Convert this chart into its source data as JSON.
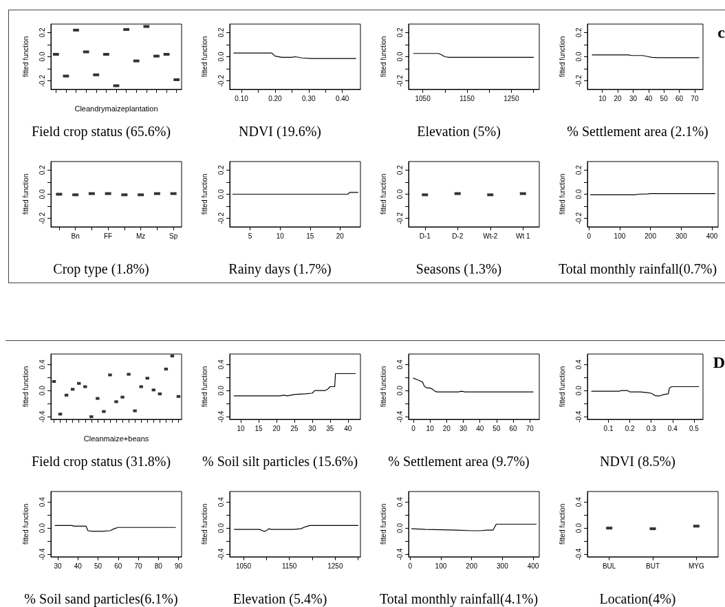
{
  "chart_data": [
    {
      "type": "scatter",
      "title": "Field crop status (65.6%)",
      "xlabel": "Cleandrymaizeplantation",
      "ylabel": "fitted function",
      "categories": [
        null,
        null,
        null,
        null,
        null,
        null,
        null,
        null,
        null,
        null,
        null,
        null,
        null
      ],
      "values": [
        0.02,
        -0.16,
        0.22,
        0.04,
        -0.15,
        0.02,
        -0.24,
        0.225,
        -0.035,
        0.25,
        0.005,
        0.02,
        -0.19
      ],
      "color": "#000000",
      "ylim": [
        -0.27,
        0.27
      ],
      "yticks": [
        -0.2,
        {
          "value": -0.1,
          "label": null
        },
        {
          "value": 0,
          "label": "0.0"
        },
        {
          "value": 0.1,
          "label": null
        },
        0.2
      ]
    },
    {
      "type": "line",
      "title": "NDVI (19.6%)",
      "ylabel": "fitted function",
      "x": [
        0.077,
        0.19,
        0.2,
        0.22,
        0.25,
        0.26,
        0.28,
        0.31,
        0.44
      ],
      "values": [
        0.03,
        0.03,
        0.005,
        -0.005,
        -0.005,
        0.0,
        -0.01,
        -0.015,
        -0.015
      ],
      "color": "#000000",
      "xlim": [
        0.065,
        0.454
      ],
      "xticks": [
        {
          "value": 0.1,
          "label": "0.10"
        },
        {
          "value": 0.15,
          "label": null
        },
        {
          "value": 0.2,
          "label": "0.20"
        },
        {
          "value": 0.25,
          "label": null
        },
        {
          "value": 0.3,
          "label": "0.30"
        },
        {
          "value": 0.35,
          "label": null
        },
        {
          "value": 0.4,
          "label": "0.40"
        }
      ],
      "ylim": [
        -0.27,
        0.27
      ],
      "yticks": [
        -0.2,
        {
          "value": -0.1,
          "label": null
        },
        {
          "value": 0,
          "label": "0.0"
        },
        {
          "value": 0.1,
          "label": null
        },
        0.2
      ]
    },
    {
      "type": "line",
      "title": "Elevation (5%)",
      "ylabel": "fitted function",
      "x": [
        1029,
        1085,
        1090,
        1100,
        1110,
        1300
      ],
      "values": [
        0.027,
        0.027,
        0.02,
        0.0,
        -0.005,
        -0.005
      ],
      "color": "#000000",
      "xlim": [
        1018,
        1313
      ],
      "xticks": [
        1050,
        {
          "value": 1100,
          "label": null
        },
        1150,
        {
          "value": 1200,
          "label": null
        },
        1250,
        {
          "value": 1300,
          "label": null
        }
      ],
      "ylim": [
        -0.27,
        0.27
      ],
      "yticks": [
        -0.2,
        {
          "value": -0.1,
          "label": null
        },
        {
          "value": 0,
          "label": "0.0"
        },
        {
          "value": 0.1,
          "label": null
        },
        0.2
      ]
    },
    {
      "type": "line",
      "title": "% Settlement area (2.1%)",
      "ylabel": "fitted function",
      "annotations": [
        "c"
      ],
      "x": [
        3.4,
        27,
        29,
        36,
        40,
        42,
        46,
        72.8
      ],
      "values": [
        0.015,
        0.015,
        0.01,
        0.01,
        0.0,
        -0.005,
        -0.008,
        -0.008
      ],
      "color": "#000000",
      "xlim": [
        0.3,
        75.4
      ],
      "xticks": [
        10,
        20,
        30,
        40,
        50,
        60,
        70
      ],
      "ylim": [
        -0.27,
        0.27
      ],
      "yticks": [
        -0.2,
        {
          "value": -0.1,
          "label": null
        },
        {
          "value": 0,
          "label": "0.0"
        },
        {
          "value": 0.1,
          "label": null
        },
        0.2
      ]
    },
    {
      "type": "scatter",
      "title": "Crop type (1.8%)",
      "ylabel": "fitted function",
      "categories": [
        null,
        "Bn",
        null,
        "FF",
        null,
        "Mz",
        null,
        "Sp"
      ],
      "values": [
        0.0,
        -0.005,
        0.005,
        0.005,
        -0.005,
        -0.005,
        0.005,
        0.005
      ],
      "color": "#000000",
      "ylim": [
        -0.27,
        0.27
      ],
      "yticks": [
        -0.2,
        {
          "value": -0.1,
          "label": null
        },
        {
          "value": 0,
          "label": "0.0"
        },
        {
          "value": 0.1,
          "label": null
        },
        0.2
      ]
    },
    {
      "type": "line",
      "title": "Rainy days (1.7%)",
      "ylabel": "fitted function",
      "x": [
        2.1,
        21.3,
        21.6,
        23
      ],
      "values": [
        0.0,
        0.0,
        0.015,
        0.015
      ],
      "color": "#000000",
      "xlim": [
        1.6,
        23.4
      ],
      "xticks": [
        5,
        10,
        15,
        20
      ],
      "ylim": [
        -0.27,
        0.27
      ],
      "yticks": [
        -0.2,
        {
          "value": -0.1,
          "label": null
        },
        {
          "value": 0,
          "label": "0.0"
        },
        {
          "value": 0.1,
          "label": null
        },
        0.2
      ]
    },
    {
      "type": "scatter",
      "title": "Seasons (1.3%)",
      "ylabel": "fitted function",
      "categories": [
        "D-1",
        "D-2",
        "Wt-2",
        "Wt 1"
      ],
      "values": [
        -0.005,
        0.005,
        -0.005,
        0.005
      ],
      "color": "#000000",
      "ylim": [
        -0.27,
        0.27
      ],
      "yticks": [
        -0.2,
        {
          "value": -0.1,
          "label": null
        },
        {
          "value": 0,
          "label": "0.0"
        },
        {
          "value": 0.1,
          "label": null
        },
        0.2
      ]
    },
    {
      "type": "line",
      "title": "Total monthly rainfall(0.7%)",
      "ylabel": "fitted function",
      "x": [
        5,
        150,
        160,
        190,
        200,
        410
      ],
      "values": [
        -0.005,
        -0.005,
        0.0,
        0.002,
        0.005,
        0.005
      ],
      "color": "#000000",
      "xlim": [
        -5,
        420
      ],
      "xticks": [
        0,
        100,
        200,
        300,
        400
      ],
      "ylim": [
        -0.27,
        0.27
      ],
      "yticks": [
        -0.2,
        {
          "value": -0.1,
          "label": null
        },
        {
          "value": 0,
          "label": "0.0"
        },
        {
          "value": 0.1,
          "label": null
        },
        0.2
      ]
    },
    {
      "type": "scatter",
      "title": "Field crop status (31.8%)",
      "xlabel": "Cleanmaize+beans",
      "ylabel": "fitted function",
      "categories": [
        null,
        null,
        null,
        null,
        null,
        null,
        null,
        null,
        null,
        null,
        null,
        null,
        null,
        null,
        null,
        null,
        null,
        null,
        null,
        null,
        null
      ],
      "values": [
        0.14,
        -0.36,
        -0.07,
        0.02,
        0.11,
        0.06,
        -0.4,
        -0.12,
        -0.32,
        0.24,
        -0.17,
        -0.1,
        0.25,
        -0.31,
        0.06,
        0.19,
        0.01,
        -0.05,
        0.33,
        0.53,
        -0.09
      ],
      "color": "#000000",
      "ylim": [
        -0.44,
        0.56
      ],
      "yticks": [
        -0.4,
        {
          "value": -0.2,
          "label": null
        },
        {
          "value": 0,
          "label": "0.0"
        },
        {
          "value": 0.2,
          "label": null
        },
        0.4
      ]
    },
    {
      "type": "line",
      "title": "% Soil silt particles (15.6%)",
      "ylabel": "fitted function",
      "x": [
        8.1,
        21,
        22,
        23,
        24,
        25,
        28,
        30,
        30.7,
        33.5,
        34.3,
        35,
        36.3,
        36.5,
        42.1
      ],
      "values": [
        -0.08,
        -0.08,
        -0.07,
        -0.08,
        -0.07,
        -0.06,
        -0.05,
        -0.04,
        0.0,
        0.0,
        0.02,
        0.06,
        0.06,
        0.26,
        0.26
      ],
      "color": "#000000",
      "xlim": [
        6.9,
        43.5
      ],
      "xticks": [
        10,
        15,
        20,
        25,
        30,
        35,
        40
      ],
      "ylim": [
        -0.44,
        0.56
      ],
      "yticks": [
        -0.4,
        {
          "value": -0.2,
          "label": null
        },
        {
          "value": 0,
          "label": "0.0"
        },
        {
          "value": 0.2,
          "label": null
        },
        0.4
      ]
    },
    {
      "type": "line",
      "title": "% Settlement area (9.7%)",
      "ylabel": "fitted function",
      "x": [
        0,
        2,
        4,
        5.5,
        6.5,
        8,
        10,
        11.5,
        13,
        14,
        27,
        29,
        31,
        72
      ],
      "values": [
        0.19,
        0.17,
        0.15,
        0.13,
        0.07,
        0.04,
        0.04,
        0.02,
        -0.01,
        -0.02,
        -0.02,
        -0.01,
        -0.02,
        -0.02
      ],
      "color": "#000000",
      "xlim": [
        -2.9,
        75.7
      ],
      "xticks": [
        0,
        10,
        20,
        30,
        40,
        50,
        60,
        70
      ],
      "ylim": [
        -0.44,
        0.56
      ],
      "yticks": [
        -0.4,
        {
          "value": -0.2,
          "label": null
        },
        {
          "value": 0,
          "label": "0.0"
        },
        {
          "value": 0.2,
          "label": null
        },
        0.4
      ]
    },
    {
      "type": "line",
      "title": "NDVI (8.5%)",
      "ylabel": "fitted function",
      "annotations": [
        "D"
      ],
      "x": [
        0.022,
        0.15,
        0.16,
        0.19,
        0.2,
        0.23,
        0.24,
        0.25,
        0.28,
        0.3,
        0.32,
        0.34,
        0.36,
        0.38,
        0.385,
        0.395,
        0.522
      ],
      "values": [
        -0.01,
        -0.01,
        0.0,
        0.0,
        -0.02,
        -0.02,
        -0.02,
        -0.02,
        -0.03,
        -0.04,
        -0.08,
        -0.08,
        -0.06,
        -0.05,
        0.04,
        0.06,
        0.06
      ],
      "color": "#000000",
      "xlim": [
        0.002,
        0.542
      ],
      "xticks": [
        0.1,
        0.2,
        0.3,
        0.4,
        0.5
      ],
      "ylim": [
        -0.44,
        0.56
      ],
      "yticks": [
        -0.4,
        {
          "value": -0.2,
          "label": null
        },
        {
          "value": 0,
          "label": "0.0"
        },
        {
          "value": 0.2,
          "label": null
        },
        0.4
      ]
    },
    {
      "type": "line",
      "title": "% Soil sand particles(6.1%)",
      "ylabel": "fitted function",
      "x": [
        28.7,
        37,
        38,
        44,
        45,
        47,
        52,
        56,
        58,
        60,
        88.5
      ],
      "values": [
        0.04,
        0.04,
        0.03,
        0.03,
        -0.04,
        -0.05,
        -0.05,
        -0.04,
        -0.01,
        0.01,
        0.01
      ],
      "color": "#000000",
      "xlim": [
        26.6,
        91.5
      ],
      "xticks": [
        30,
        40,
        50,
        60,
        70,
        80,
        90
      ],
      "ylim": [
        -0.44,
        0.56
      ],
      "yticks": [
        -0.4,
        {
          "value": -0.2,
          "label": null
        },
        {
          "value": 0,
          "label": "0.0"
        },
        {
          "value": 0.2,
          "label": null
        },
        0.4
      ]
    },
    {
      "type": "line",
      "title": "Elevation (5.4%)",
      "ylabel": "fitted function",
      "x": [
        1030,
        1085,
        1095,
        1100,
        1105,
        1110,
        1160,
        1175,
        1185,
        1195,
        1300
      ],
      "values": [
        -0.02,
        -0.02,
        -0.05,
        -0.04,
        -0.01,
        -0.02,
        -0.02,
        -0.01,
        0.02,
        0.04,
        0.04
      ],
      "color": "#000000",
      "xlim": [
        1020,
        1305
      ],
      "xticks": [
        1050,
        {
          "value": 1100,
          "label": null
        },
        1150,
        {
          "value": 1200,
          "label": null
        },
        1250,
        {
          "value": 1300,
          "label": null
        }
      ],
      "ylim": [
        -0.44,
        0.56
      ],
      "yticks": [
        -0.4,
        {
          "value": -0.2,
          "label": null
        },
        {
          "value": 0,
          "label": "0.0"
        },
        {
          "value": 0.2,
          "label": null
        },
        0.4
      ]
    },
    {
      "type": "line",
      "title": "Total monthly rainfall(4.1%)",
      "ylabel": "fitted function",
      "x": [
        5,
        50,
        150,
        200,
        230,
        250,
        270,
        280,
        410
      ],
      "values": [
        -0.01,
        -0.02,
        -0.03,
        -0.04,
        -0.04,
        -0.03,
        -0.03,
        0.06,
        0.06
      ],
      "color": "#000000",
      "xlim": [
        -5,
        420
      ],
      "xticks": [
        0,
        100,
        200,
        300,
        400
      ],
      "ylim": [
        -0.44,
        0.56
      ],
      "yticks": [
        -0.4,
        {
          "value": -0.2,
          "label": null
        },
        {
          "value": 0,
          "label": "0.0"
        },
        {
          "value": 0.2,
          "label": null
        },
        0.4
      ]
    },
    {
      "type": "scatter",
      "title": "Location(4%)",
      "ylabel": "fitted function",
      "categories": [
        "BUL",
        "BUT",
        "MYG"
      ],
      "values": [
        0.0,
        -0.01,
        0.03
      ],
      "color": "#000000",
      "ylim": [
        -0.44,
        0.56
      ],
      "yticks": [
        -0.4,
        {
          "value": -0.2,
          "label": null
        },
        {
          "value": 0,
          "label": "0.0"
        },
        {
          "value": 0.2,
          "label": null
        },
        0.4
      ]
    }
  ]
}
